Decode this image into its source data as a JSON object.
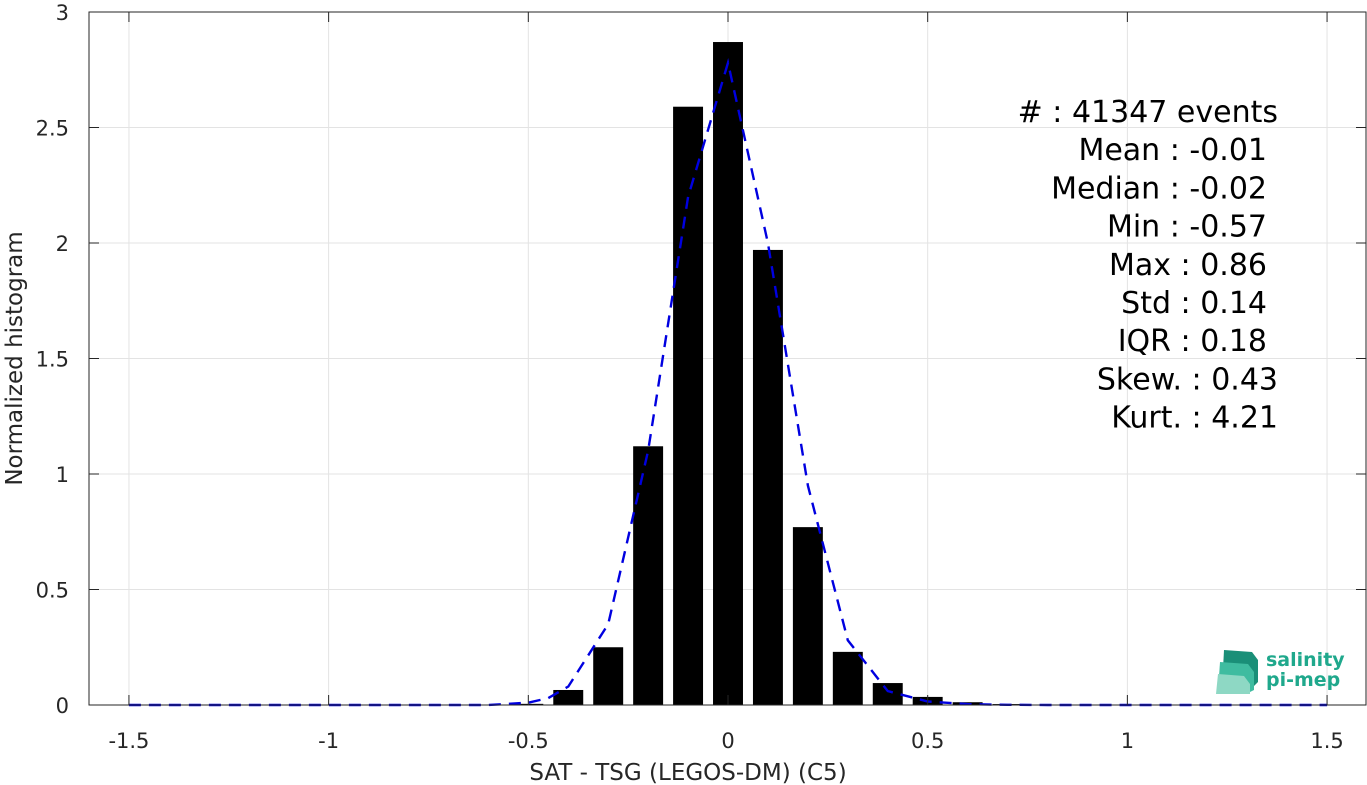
{
  "chart_data": {
    "type": "bar",
    "xlabel": "SAT - TSG (LEGOS-DM) (C5)",
    "ylabel": "Normalized histogram",
    "xlim": [
      -1.6,
      1.6
    ],
    "ylim": [
      0,
      3
    ],
    "x_ticks": [
      -1.5,
      -1,
      -0.5,
      0,
      0.5,
      1,
      1.5
    ],
    "x_tick_labels": [
      "-1.5",
      "-1",
      "-0.5",
      "0",
      "0.5",
      "1",
      "1.5"
    ],
    "y_ticks": [
      0,
      0.5,
      1,
      1.5,
      2,
      2.5,
      3
    ],
    "y_tick_labels": [
      "0",
      "0.5",
      "1",
      "1.5",
      "2",
      "2.5",
      "3"
    ],
    "grid": true,
    "bar_color": "#000000",
    "bar_width": 0.075,
    "bars": {
      "x": [
        -0.5,
        -0.4,
        -0.3,
        -0.2,
        -0.1,
        0.0,
        0.1,
        0.2,
        0.3,
        0.4,
        0.5,
        0.6,
        0.7
      ],
      "values": [
        0.005,
        0.065,
        0.25,
        1.12,
        2.59,
        2.87,
        1.97,
        0.77,
        0.23,
        0.095,
        0.035,
        0.012,
        0.004
      ]
    },
    "fit_curve": {
      "style": "dashed",
      "color": "#0000e0",
      "x": [
        -1.5,
        -1.2,
        -0.9,
        -0.6,
        -0.5,
        -0.45,
        -0.4,
        -0.3,
        -0.2,
        -0.1,
        0.0,
        0.1,
        0.2,
        0.3,
        0.4,
        0.5,
        0.6,
        0.7,
        0.8,
        1.0,
        1.2,
        1.5
      ],
      "values": [
        0.0,
        0.0,
        0.0,
        0.0,
        0.01,
        0.03,
        0.08,
        0.35,
        1.1,
        2.2,
        2.78,
        2.0,
        0.95,
        0.28,
        0.06,
        0.015,
        0.004,
        0.001,
        0.0,
        0.0,
        0.0,
        0.0
      ]
    }
  },
  "stats": {
    "lines": [
      "#  : 41347 events",
      "Mean : -0.01",
      "Median : -0.02",
      "Min : -0.57",
      "Max : 0.86",
      "Std : 0.14",
      "IQR : 0.18",
      "Skew. : 0.43",
      "Kurt. : 4.21"
    ]
  },
  "logo": {
    "line1": "salinity",
    "line2": "pi-mep",
    "color": "#1fa88c"
  }
}
